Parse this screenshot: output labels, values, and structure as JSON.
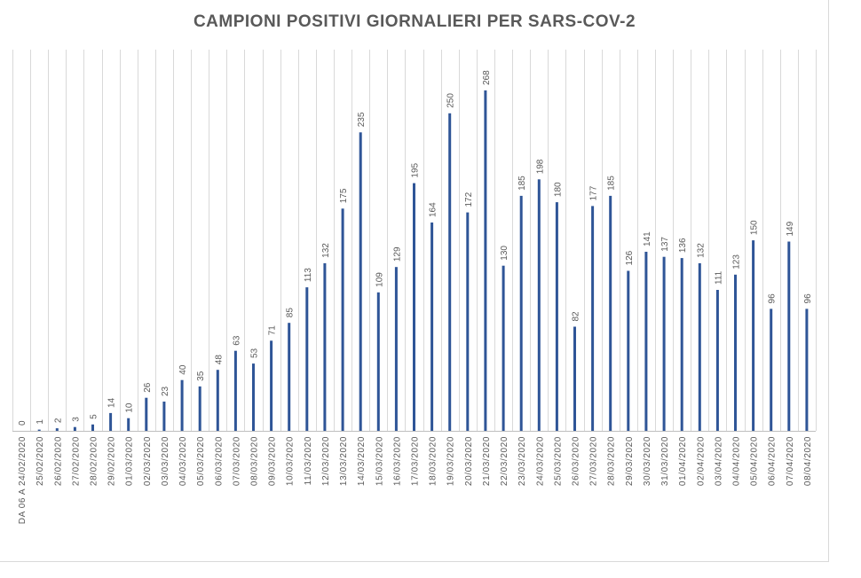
{
  "chart_data": {
    "type": "bar",
    "title": "CAMPIONI POSITIVI GIORNALIERI PER SARS-COV-2",
    "xlabel": "",
    "ylabel": "",
    "ylim": [
      0,
      280
    ],
    "grid": "vertical",
    "bar_color": "#2f5597",
    "categories": [
      "DA 06 A 24/02/2020",
      "25/02/2020",
      "26/02/2020",
      "27/02/2020",
      "28/02/2020",
      "29/02/2020",
      "01/03/2020",
      "02/03/2020",
      "03/03/2020",
      "04/03/2020",
      "05/03/2020",
      "06/03/2020",
      "07/03/2020",
      "08/03/2020",
      "09/03/2020",
      "10/03/2020",
      "11/03/2020",
      "12/03/2020",
      "13/03/2020",
      "14/03/2020",
      "15/03/2020",
      "16/03/2020",
      "17/03/2020",
      "18/03/2020",
      "19/03/2020",
      "20/03/2020",
      "21/03/2020",
      "22/03/2020",
      "23/03/2020",
      "24/03/2020",
      "25/03/2020",
      "26/03/2020",
      "27/03/2020",
      "28/03/2020",
      "29/03/2020",
      "30/03/2020",
      "31/03/2020",
      "01/04/2020",
      "02/04/2020",
      "03/04/2020",
      "04/04/2020",
      "05/04/2020",
      "06/04/2020",
      "07/04/2020",
      "08/04/2020"
    ],
    "values": [
      0,
      1,
      2,
      3,
      5,
      14,
      10,
      26,
      23,
      40,
      35,
      48,
      63,
      53,
      71,
      85,
      113,
      132,
      175,
      235,
      109,
      129,
      195,
      164,
      250,
      172,
      268,
      130,
      185,
      198,
      180,
      82,
      177,
      185,
      126,
      141,
      137,
      136,
      132,
      111,
      123,
      150,
      96,
      149,
      96
    ]
  }
}
